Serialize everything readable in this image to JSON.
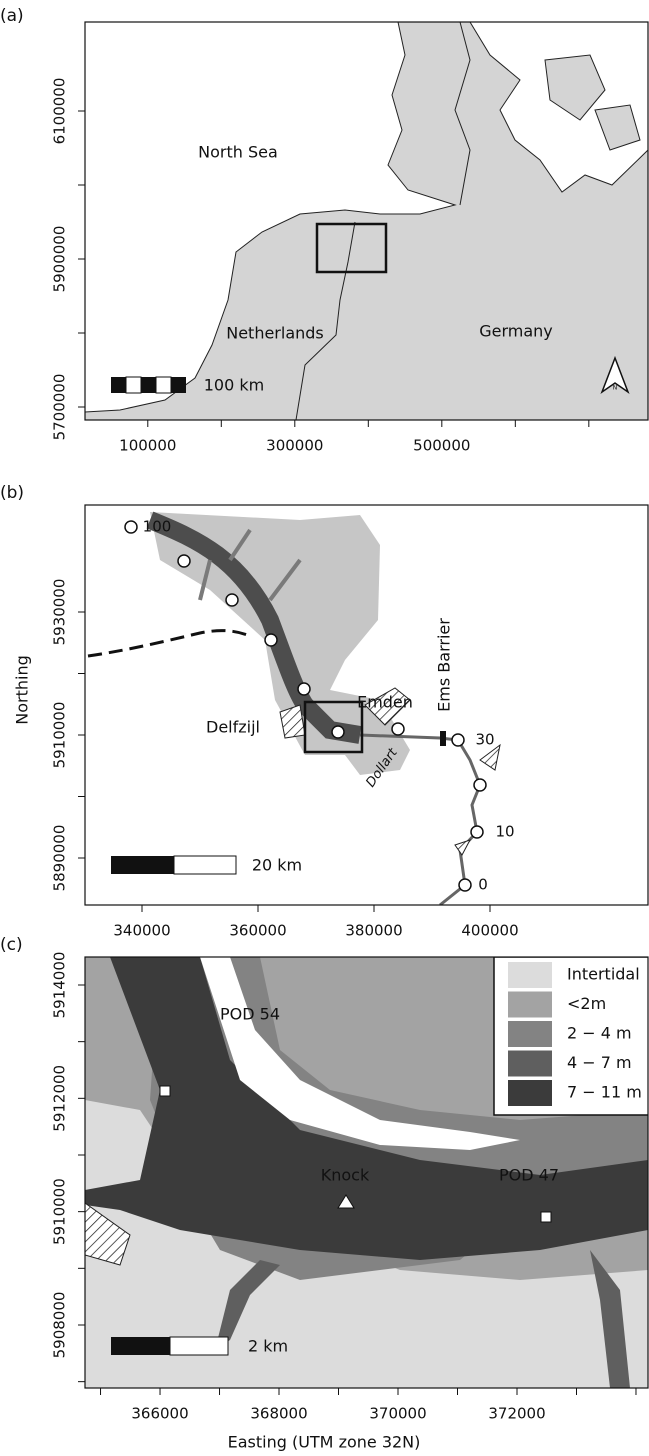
{
  "axis_labels": {
    "x": "Easting (UTM zone 32N)",
    "y": "Northing"
  },
  "panels": [
    {
      "label": "(a)",
      "xlim": [
        14576,
        780508
      ],
      "ylim": [
        5682432,
        6220270
      ],
      "xticks": [
        100000,
        300000,
        500000
      ],
      "xminor_ticks": [
        200000,
        400000,
        600000,
        700000
      ],
      "yticks": [
        5700000,
        5900000,
        6100000
      ],
      "yminor_ticks": [
        5800000,
        6000000
      ],
      "annotations": [
        "North Sea",
        "Netherlands",
        "Germany"
      ],
      "scale_bar": "100 km",
      "north_arrow": "N"
    },
    {
      "label": "(b)",
      "xlim": [
        330172,
        427239
      ],
      "ylim": [
        5882358,
        5947398
      ],
      "xticks": [
        340000,
        360000,
        380000,
        400000
      ],
      "xminor_ticks": [],
      "yticks": [
        5890000,
        5910000,
        5930000
      ],
      "yminor_ticks": [
        5900000,
        5920000
      ],
      "annotations": [
        "Emden",
        "Delfzijl",
        "Ems Barrier",
        "Dollart"
      ],
      "station_labels": [
        "100",
        "30",
        "10",
        "0"
      ],
      "scale_bar": "20 km"
    },
    {
      "label": "(c)",
      "xlim": [
        364739,
        374202
      ],
      "ylim": [
        5906888,
        5914494
      ],
      "xticks": [
        366000,
        368000,
        370000,
        372000
      ],
      "xminor_ticks": [
        365000,
        367000,
        369000,
        371000,
        373000,
        374000
      ],
      "yticks": [
        5908000,
        5910000,
        5912000,
        5914000
      ],
      "yminor_ticks": [
        5907000,
        5909000,
        5911000,
        5913000
      ],
      "annotations": [
        "POD 54",
        "Knock",
        "POD 47"
      ],
      "legend": [
        {
          "name": "Intertidal",
          "color": "#dcdcdc"
        },
        {
          "name": "<2m",
          "color": "#a3a3a3"
        },
        {
          "name": "2 − 4 m",
          "color": "#838383"
        },
        {
          "name": "4 − 7 m",
          "color": "#5f5f5f"
        },
        {
          "name": "7 − 11 m",
          "color": "#3b3b3b"
        }
      ],
      "scale_bar": "2 km"
    }
  ]
}
